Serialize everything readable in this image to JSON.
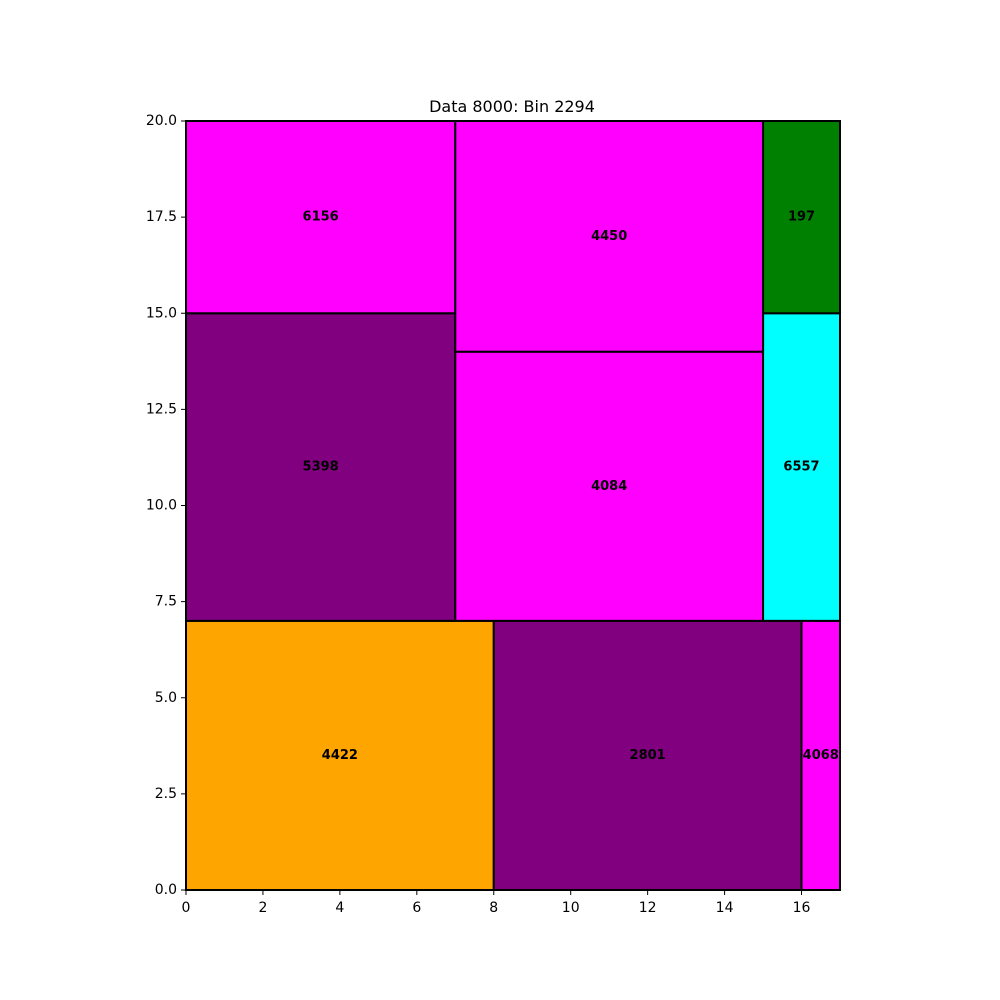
{
  "chart_data": {
    "type": "rectangle-packing",
    "title": "Data 8000: Bin 2294",
    "xlim": [
      0,
      17
    ],
    "ylim": [
      0,
      20
    ],
    "xticks": [
      0,
      2,
      4,
      6,
      8,
      10,
      12,
      14,
      16
    ],
    "yticks": [
      0.0,
      2.5,
      5.0,
      7.5,
      10.0,
      12.5,
      15.0,
      17.5,
      20.0
    ],
    "xtick_labels": [
      "0",
      "2",
      "4",
      "6",
      "8",
      "10",
      "12",
      "14",
      "16"
    ],
    "ytick_labels": [
      "0.0",
      "2.5",
      "5.0",
      "7.5",
      "10.0",
      "12.5",
      "15.0",
      "17.5",
      "20.0"
    ],
    "grid": false,
    "rectangles": [
      {
        "label": "4422",
        "x": 0,
        "y": 0,
        "w": 8,
        "h": 7,
        "color": "#FFA500"
      },
      {
        "label": "2801",
        "x": 8,
        "y": 0,
        "w": 8,
        "h": 7,
        "color": "#800080"
      },
      {
        "label": "4068",
        "x": 16,
        "y": 0,
        "w": 1,
        "h": 7,
        "color": "#FF00FF"
      },
      {
        "label": "5398",
        "x": 0,
        "y": 7,
        "w": 7,
        "h": 8,
        "color": "#800080"
      },
      {
        "label": "4084",
        "x": 7,
        "y": 7,
        "w": 8,
        "h": 7,
        "color": "#FF00FF"
      },
      {
        "label": "6557",
        "x": 15,
        "y": 7,
        "w": 2,
        "h": 8,
        "color": "#00FFFF"
      },
      {
        "label": "6156",
        "x": 0,
        "y": 15,
        "w": 7,
        "h": 5,
        "color": "#FF00FF"
      },
      {
        "label": "4450",
        "x": 7,
        "y": 14,
        "w": 8,
        "h": 6,
        "color": "#FF00FF"
      },
      {
        "label": "197",
        "x": 15,
        "y": 15,
        "w": 2,
        "h": 5,
        "color": "#008000"
      }
    ]
  }
}
